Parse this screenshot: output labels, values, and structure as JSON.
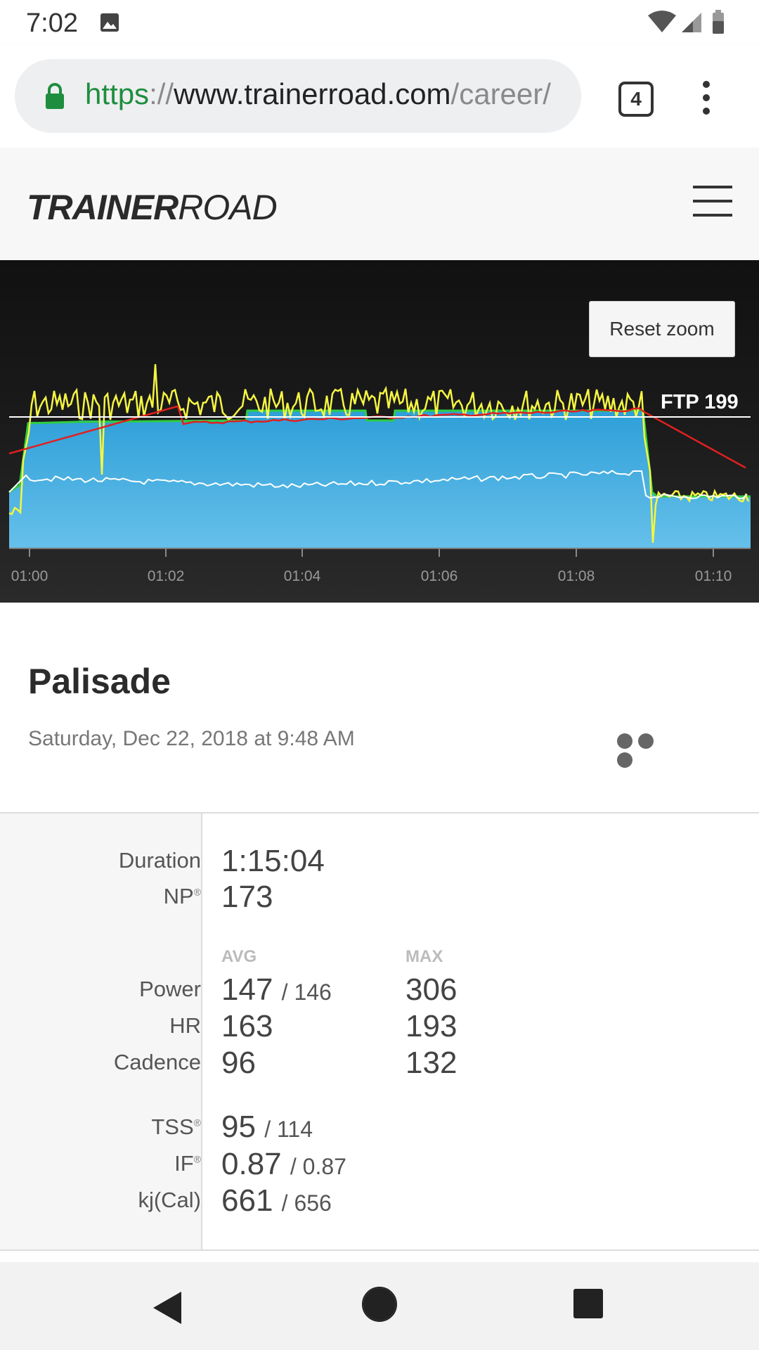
{
  "status_bar": {
    "time": "7:02"
  },
  "browser": {
    "url_scheme": "https",
    "url_sep": "://",
    "url_host": "www.trainerroad.com",
    "url_path": "/career/",
    "tab_count": "4"
  },
  "site": {
    "logo_bold": "TRAINER",
    "logo_light": "ROAD"
  },
  "chart": {
    "reset_zoom_label": "Reset zoom",
    "ftp_label": "FTP 199",
    "ticks": [
      "01:00",
      "01:02",
      "01:04",
      "01:06",
      "01:08",
      "01:10"
    ]
  },
  "chart_data": {
    "type": "area",
    "x_ticks": [
      "01:00",
      "01:02",
      "01:04",
      "01:06",
      "01:08",
      "01:10"
    ],
    "ftp": 199,
    "series": [
      {
        "name": "",
        "color": "#4cb6e8",
        "kind": "target-area"
      },
      {
        "name": "",
        "color": "#f5f542",
        "kind": "power"
      },
      {
        "name": "",
        "color": "#e02020",
        "kind": "heart-rate"
      },
      {
        "name": "",
        "color": "#ffffff",
        "kind": "cadence"
      }
    ],
    "colors": {
      "target": "#4cb6e8",
      "power": "#f5f542",
      "hr": "#e02020",
      "cadence": "#ffffff",
      "ftp_line": "#ffffff"
    }
  },
  "workout": {
    "title": "Palisade",
    "date": "Saturday, Dec 22, 2018 at 9:48 AM"
  },
  "stats": {
    "duration_label": "Duration",
    "duration_value": "1:15:04",
    "np_label": "NP",
    "np_value": "173",
    "avg_head": "AVG",
    "max_head": "MAX",
    "power_label": "Power",
    "power_avg": "147",
    "power_avg_alt": "/ 146",
    "power_max": "306",
    "hr_label": "HR",
    "hr_avg": "163",
    "hr_max": "193",
    "cadence_label": "Cadence",
    "cadence_avg": "96",
    "cadence_max": "132",
    "tss_label": "TSS",
    "tss_value": "95",
    "tss_alt": "/ 114",
    "if_label": "IF",
    "if_value": "0.87",
    "if_alt": "/ 0.87",
    "kj_label": "kj(Cal)",
    "kj_value": "661",
    "kj_alt": "/ 656",
    "reg": "®"
  }
}
